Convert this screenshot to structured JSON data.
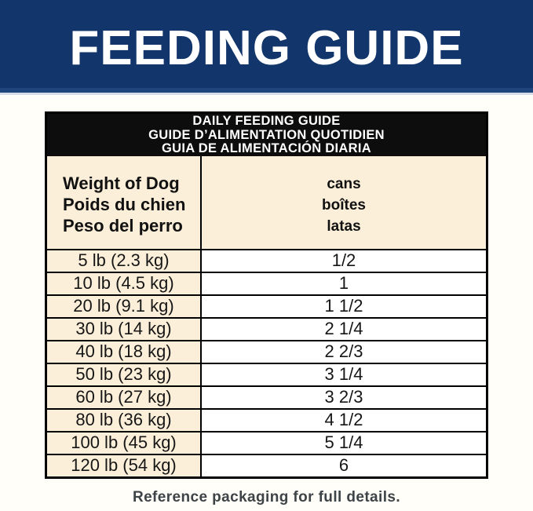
{
  "banner": {
    "title": "FEEDING GUIDE",
    "bg_color": "#12356b",
    "accent_strip_color": "#1f437b",
    "divider_line_color": "#d8dce8",
    "text_color": "#ffffff"
  },
  "table": {
    "title_lines": [
      "DAILY FEEDING GUIDE",
      "GUIDE D’ALIMENTATION QUOTIDIEN",
      "GUIA DE ALIMENTACIÓN DIARIA"
    ],
    "columns": {
      "weight": [
        "Weight of Dog",
        "Poids du chien",
        "Peso del perro"
      ],
      "cans": [
        "cans",
        "boîtes",
        "latas"
      ]
    },
    "rows": [
      {
        "weight": "5 lb (2.3 kg)",
        "cans": "1/2"
      },
      {
        "weight": "10 lb (4.5 kg)",
        "cans": "1"
      },
      {
        "weight": "20 lb (9.1 kg)",
        "cans": "1 1/2"
      },
      {
        "weight": "30 lb (14 kg)",
        "cans": "2 1/4"
      },
      {
        "weight": "40 lb (18 kg)",
        "cans": "2 2/3"
      },
      {
        "weight": "50 lb (23 kg)",
        "cans": "3 1/4"
      },
      {
        "weight": "60 lb (27 kg)",
        "cans": "3 2/3"
      },
      {
        "weight": "80 lb (36 kg)",
        "cans": "4 1/2"
      },
      {
        "weight": "100 lb (45 kg)",
        "cans": "5 1/4"
      },
      {
        "weight": "120 lb (54 kg)",
        "cans": "6"
      }
    ],
    "colors": {
      "title_band_bg": "#0d0d0d",
      "title_band_text": "#ffffff",
      "cell_cream_bg": "#fcefd9",
      "cell_white_bg": "#ffffff",
      "border": "#000000",
      "text": "#161616"
    }
  },
  "footer": {
    "note": "Reference packaging for full details."
  },
  "page": {
    "bg_color": "#fffef8"
  }
}
